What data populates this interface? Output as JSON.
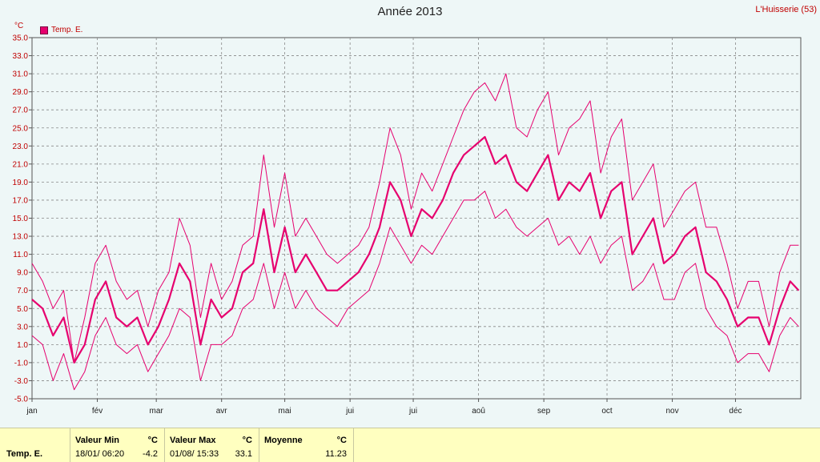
{
  "header": {
    "title": "Année 2013",
    "station": "L'Huisserie (53)",
    "unit": "°C"
  },
  "legend": {
    "label": "Temp. E.",
    "color": "#e6006e"
  },
  "stats": {
    "row_label": "Temp. E.",
    "min_label": "Valeur Min",
    "min_unit": "°C",
    "min_date": "18/01/  06:20",
    "min_value": "-4.2",
    "max_label": "Valeur Max",
    "max_unit": "°C",
    "max_date": "01/08/  15:33",
    "max_value": "33.1",
    "avg_label": "Moyenne",
    "avg_unit": "°C",
    "avg_value": "11.23"
  },
  "chart_data": {
    "type": "line",
    "title": "Année 2013",
    "ylabel": "°C",
    "ylim": [
      -5,
      35
    ],
    "yticks": [
      "35.0",
      "33.0",
      "31.0",
      "29.0",
      "27.0",
      "25.0",
      "23.0",
      "21.0",
      "19.0",
      "17.0",
      "15.0",
      "13.0",
      "11.0",
      "9.0",
      "7.0",
      "5.0",
      "3.0",
      "1.0",
      "-1.0",
      "-3.0",
      "-5.0"
    ],
    "xlim": [
      0,
      365
    ],
    "month_labels": [
      "jan",
      "fév",
      "mar",
      "avr",
      "mai",
      "jui",
      "jui",
      "aoû",
      "sep",
      "oct",
      "nov",
      "déc"
    ],
    "month_starts": [
      0,
      31,
      59,
      90,
      120,
      151,
      181,
      212,
      243,
      273,
      304,
      334
    ],
    "grid": true,
    "legend_position": "top-left",
    "x": [
      0,
      5,
      10,
      15,
      20,
      25,
      30,
      35,
      40,
      45,
      50,
      55,
      60,
      65,
      70,
      75,
      80,
      85,
      90,
      95,
      100,
      105,
      110,
      115,
      120,
      125,
      130,
      135,
      140,
      145,
      150,
      155,
      160,
      165,
      170,
      175,
      180,
      185,
      190,
      195,
      200,
      205,
      210,
      215,
      220,
      225,
      230,
      235,
      240,
      245,
      250,
      255,
      260,
      265,
      270,
      275,
      280,
      285,
      290,
      295,
      300,
      305,
      310,
      315,
      320,
      325,
      330,
      335,
      340,
      345,
      350,
      355,
      360,
      364
    ],
    "series": [
      {
        "name": "Temp. E.",
        "role": "max",
        "values": [
          10,
          8,
          5,
          7,
          -1,
          4,
          10,
          12,
          8,
          6,
          7,
          3,
          7,
          9,
          15,
          12,
          4,
          10,
          6,
          8,
          12,
          13,
          22,
          14,
          20,
          13,
          15,
          13,
          11,
          10,
          11,
          12,
          14,
          19,
          25,
          22,
          16,
          20,
          18,
          21,
          24,
          27,
          29,
          30,
          28,
          31,
          25,
          24,
          27,
          29,
          22,
          25,
          26,
          28,
          20,
          24,
          26,
          17,
          19,
          21,
          14,
          16,
          18,
          19,
          14,
          14,
          10,
          5,
          8,
          8,
          3,
          9,
          12,
          12
        ]
      },
      {
        "name": "Temp. E.",
        "role": "mean",
        "values": [
          6,
          5,
          2,
          4,
          -1,
          1,
          6,
          8,
          4,
          3,
          4,
          1,
          3,
          6,
          10,
          8,
          1,
          6,
          4,
          5,
          9,
          10,
          16,
          9,
          14,
          9,
          11,
          9,
          7,
          7,
          8,
          9,
          11,
          14,
          19,
          17,
          13,
          16,
          15,
          17,
          20,
          22,
          23,
          24,
          21,
          22,
          19,
          18,
          20,
          22,
          17,
          19,
          18,
          20,
          15,
          18,
          19,
          11,
          13,
          15,
          10,
          11,
          13,
          14,
          9,
          8,
          6,
          3,
          4,
          4,
          1,
          5,
          8,
          7
        ]
      },
      {
        "name": "Temp. E.",
        "role": "min",
        "values": [
          2,
          1,
          -3,
          0,
          -4,
          -2,
          2,
          4,
          1,
          0,
          1,
          -2,
          0,
          2,
          5,
          4,
          -3,
          1,
          1,
          2,
          5,
          6,
          10,
          5,
          9,
          5,
          7,
          5,
          4,
          3,
          5,
          6,
          7,
          10,
          14,
          12,
          10,
          12,
          11,
          13,
          15,
          17,
          17,
          18,
          15,
          16,
          14,
          13,
          14,
          15,
          12,
          13,
          11,
          13,
          10,
          12,
          13,
          7,
          8,
          10,
          6,
          6,
          9,
          10,
          5,
          3,
          2,
          -1,
          0,
          0,
          -2,
          2,
          4,
          3
        ]
      }
    ]
  }
}
